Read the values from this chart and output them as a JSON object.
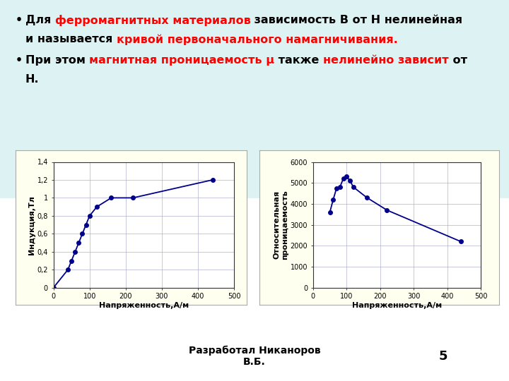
{
  "bg_color": "#ffffff",
  "bg_top_color": "#e8f8f8",
  "chart_panel_bg": "#fffff0",
  "chart_border_color": "#cccccc",
  "line1_parts": [
    {
      "text": "Для ",
      "color": "#000000"
    },
    {
      "text": "ферромагнитных материалов",
      "color": "#ff0000"
    },
    {
      "text": " зависимость B от H нелинейная",
      "color": "#000000"
    }
  ],
  "line2_parts": [
    {
      "text": "и называется ",
      "color": "#000000"
    },
    {
      "text": "кривой первоначального намагничивания.",
      "color": "#ff0000"
    }
  ],
  "line3_parts": [
    {
      "text": "При этом ",
      "color": "#000000"
    },
    {
      "text": "магнитная проницаемость μ",
      "color": "#ff0000"
    },
    {
      "text": " также ",
      "color": "#000000"
    },
    {
      "text": "нелинейно зависит",
      "color": "#ff0000"
    },
    {
      "text": " от",
      "color": "#000000"
    }
  ],
  "line4_parts": [
    {
      "text": "H.",
      "color": "#000000"
    }
  ],
  "chart1": {
    "H": [
      0,
      40,
      50,
      60,
      70,
      80,
      90,
      100,
      120,
      160,
      220,
      440
    ],
    "B": [
      0.0,
      0.2,
      0.3,
      0.4,
      0.5,
      0.6,
      0.7,
      0.8,
      0.9,
      1.0,
      1.0,
      1.2
    ],
    "xlabel": "Напряженность,А/м",
    "ylabel": "Индукция,Тл",
    "xlim": [
      0,
      500
    ],
    "ylim": [
      0,
      1.4
    ],
    "xticks": [
      0,
      100,
      200,
      300,
      400,
      500
    ],
    "yticks": [
      0,
      0.2,
      0.4,
      0.6,
      0.8,
      1.0,
      1.2,
      1.4
    ],
    "ytick_labels": [
      "0",
      "0,2",
      "0,4",
      "0,6",
      "0,8",
      "1",
      "1,2",
      "1,4"
    ],
    "line_color": "#00008b",
    "marker_size": 4
  },
  "chart2": {
    "H": [
      50,
      60,
      70,
      80,
      90,
      100,
      110,
      120,
      160,
      220,
      440
    ],
    "mu": [
      3600,
      4200,
      4750,
      4800,
      5200,
      5300,
      5100,
      4800,
      4300,
      3700,
      2200
    ],
    "xlabel": "Напряженность,А/м",
    "ylabel": "Относительная\nпроницаемость",
    "xlim": [
      0,
      500
    ],
    "ylim": [
      0,
      6000
    ],
    "xticks": [
      0,
      100,
      200,
      300,
      400,
      500
    ],
    "yticks": [
      0,
      1000,
      2000,
      3000,
      4000,
      5000,
      6000
    ],
    "line_color": "#00008b",
    "marker_size": 4
  },
  "footer_left": "Разработал Никаноров\nВ.Б.",
  "footer_num": "5"
}
